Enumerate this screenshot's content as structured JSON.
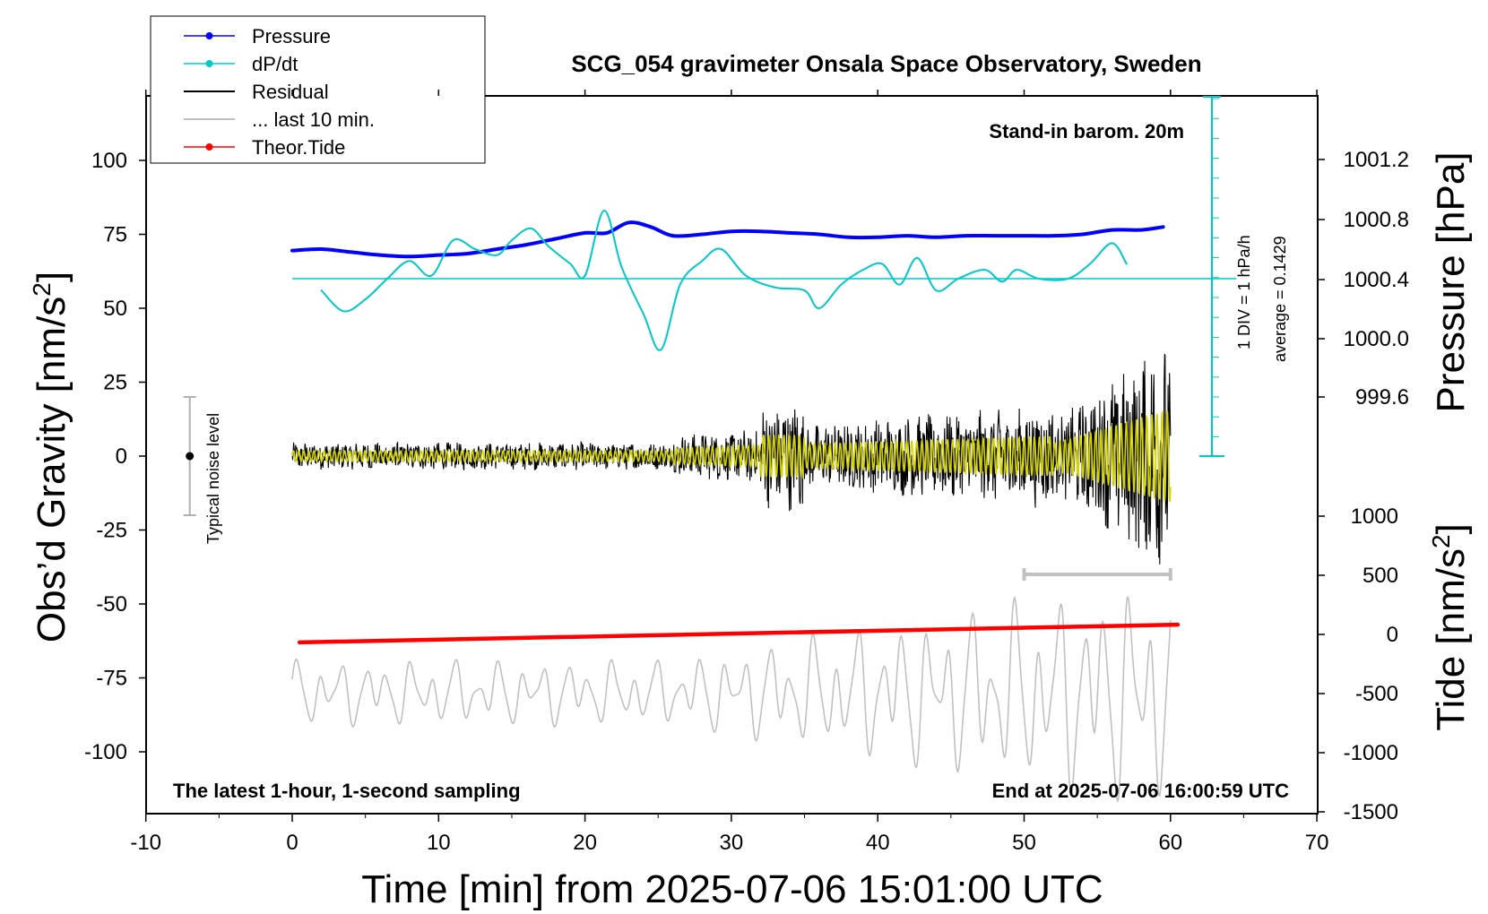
{
  "chart_data": {
    "type": "line",
    "title": "SCG_054 gravimeter Onsala Space Observatory, Sweden",
    "xlabel": "Time [min] from 2025-07-06 15:01:00 UTC",
    "ylabel_left_prefix": "Obs’d Gravity [nm/s",
    "ylabel_left_sup": "2",
    "ylabel_left_suffix": "]",
    "ylabel_right_top": "Pressure [hPa]",
    "ylabel_right_bottom_prefix": "Tide [nm/s",
    "ylabel_right_bottom_sup": "2",
    "ylabel_right_bottom_suffix": "]",
    "xlim": [
      -10,
      70
    ],
    "ylim": [
      -120,
      120
    ],
    "xticks": [
      "-10",
      "0",
      "10",
      "20",
      "30",
      "40",
      "50",
      "60",
      "70"
    ],
    "yticks_left": [
      "100",
      "75",
      "50",
      "25",
      "0",
      "-25",
      "-50",
      "-75",
      "-100"
    ],
    "yticks_pressure": [
      "1001.2",
      "1000.8",
      "1000.4",
      "1000.0",
      "999.6"
    ],
    "yticks_tide": [
      "1000",
      "500",
      "0",
      "-500",
      "-1000",
      "-1500"
    ],
    "annotations": {
      "barometer": "Stand-in barom. 20m",
      "latest": "The latest 1-hour, 1-second sampling",
      "end": "End at 2025-07-06 16:00:59 UTC",
      "noise": "Typical noise level",
      "div": "1 DIV = 1 hPa/h",
      "average": "average = 0.1429"
    },
    "legend": [
      {
        "label": "Pressure",
        "color": "#0000ff",
        "marker": true
      },
      {
        "label": "dP/dt",
        "color": "#00c8c8",
        "marker": true
      },
      {
        "label": "Residual",
        "color": "#000000",
        "marker": false
      },
      {
        "label": "... last 10 min.",
        "color": "#c0c0c0",
        "marker": false
      },
      {
        "label": "Theor.Tide",
        "color": "#ff0000",
        "marker": true
      }
    ],
    "series": [
      {
        "name": "Pressure",
        "color": "#0000ff",
        "x": [
          0,
          2,
          4,
          6,
          8,
          10,
          12,
          14,
          16,
          18,
          20,
          21.5,
          23,
          24.5,
          26,
          28,
          30,
          32,
          34,
          36,
          38,
          40,
          42,
          44,
          46,
          48,
          50,
          52,
          54,
          56,
          58,
          59.5
        ],
        "y": [
          69.5,
          70,
          69,
          68,
          67.5,
          68,
          68.5,
          70,
          71.5,
          73.5,
          75.5,
          75.5,
          79,
          77.5,
          74.5,
          75,
          76,
          76,
          75.5,
          75,
          74,
          74,
          74.5,
          74,
          74.5,
          74.5,
          74.5,
          74.5,
          75,
          76.5,
          76.5,
          77.5
        ]
      },
      {
        "name": "dP/dt",
        "color": "#00c8c8",
        "x": [
          2,
          3.5,
          5,
          6.5,
          8,
          9.5,
          11,
          12.5,
          14,
          15,
          16.3,
          17.5,
          19,
          20,
          21.3,
          22.5,
          24,
          25.2,
          26.5,
          28,
          29.3,
          31,
          33,
          35,
          36,
          37.5,
          39,
          40.3,
          41.5,
          42.7,
          44,
          45.5,
          47.3,
          48.5,
          49.5,
          51,
          53,
          54.5,
          56,
          57
        ],
        "y": [
          56,
          49,
          53,
          60,
          66,
          61,
          73,
          70,
          68,
          73,
          77,
          71,
          65,
          61,
          83,
          64,
          48,
          36,
          58,
          66,
          70,
          61,
          57,
          56,
          50,
          58,
          63,
          65,
          58,
          67,
          56,
          60,
          63,
          59,
          63,
          60,
          60,
          65,
          72,
          65
        ]
      },
      {
        "name": "Theor.Tide",
        "color": "#ff0000",
        "x": [
          0.5,
          60.5
        ],
        "y": [
          -63,
          -57
        ]
      }
    ],
    "dpdt_average_line_y": 60,
    "noise_bar": {
      "x": -7,
      "y_low": -20,
      "y_high": 20
    },
    "last10_bar": {
      "x_start": 50,
      "x_end": 60,
      "y": -40
    }
  }
}
